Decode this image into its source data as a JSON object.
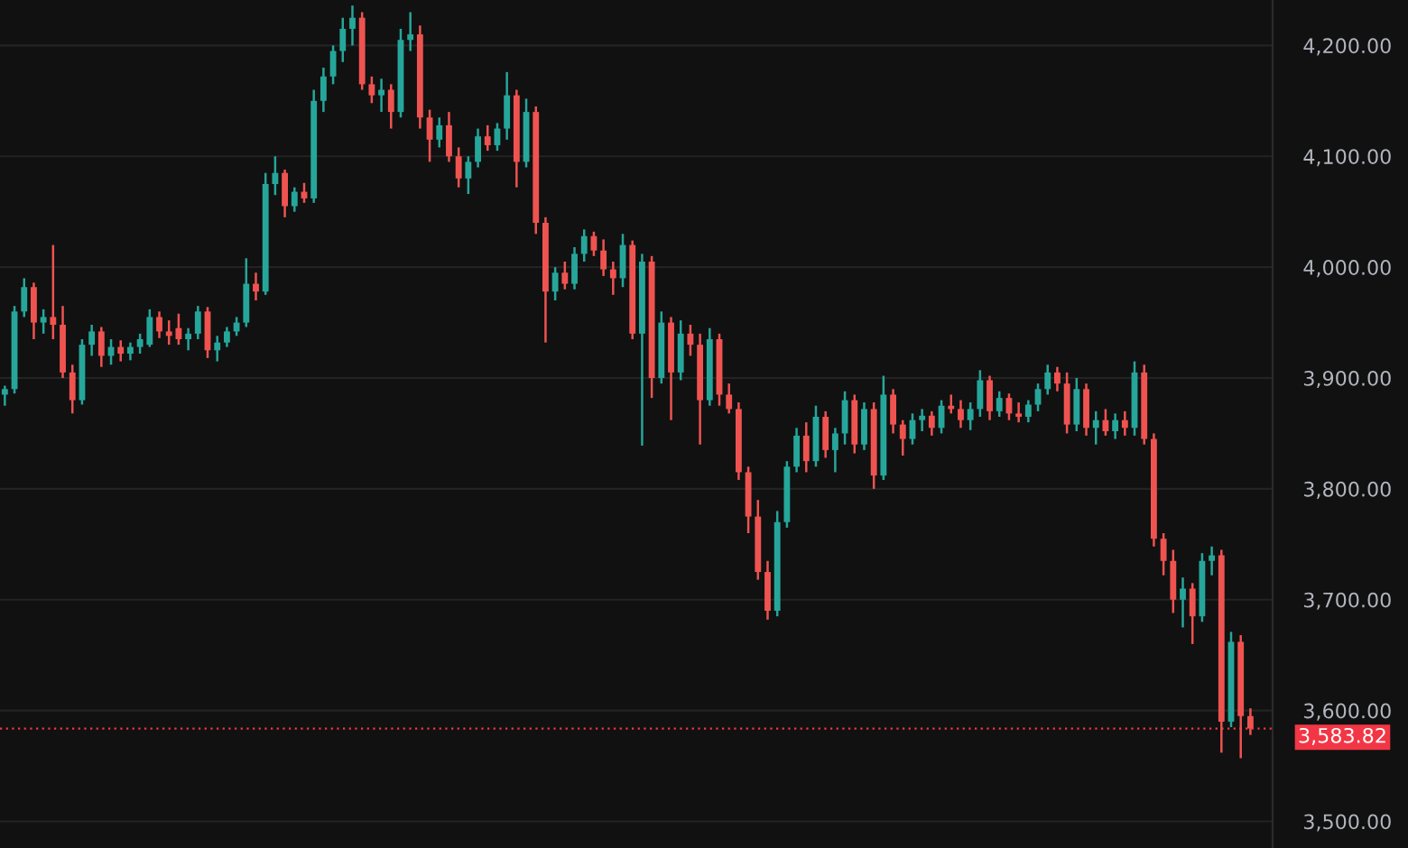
{
  "chart_data": {
    "type": "candlestick",
    "categories": [
      null,
      null,
      null,
      null,
      null,
      null,
      null,
      null,
      null,
      null,
      null,
      null,
      null,
      null,
      null,
      null,
      null,
      null,
      null,
      null,
      null,
      null,
      null,
      null,
      null,
      null,
      null,
      null,
      null,
      null,
      null,
      null,
      null,
      null,
      null,
      null,
      null,
      null,
      null,
      null,
      null,
      null,
      null,
      null,
      null,
      null,
      null,
      null,
      null,
      null,
      null,
      null,
      null,
      null,
      null,
      null,
      null,
      null,
      null,
      null,
      null,
      null,
      null,
      null,
      null,
      null,
      null,
      null,
      null,
      null,
      null,
      null,
      null,
      null,
      null,
      null,
      null,
      null,
      null,
      null,
      null,
      null,
      null,
      null,
      null,
      null,
      null,
      null,
      null,
      null,
      null,
      null,
      null,
      null,
      null,
      null,
      null,
      null,
      null,
      null,
      null,
      null,
      null,
      null,
      null,
      null,
      null,
      null,
      null,
      null,
      null,
      null,
      null,
      null,
      null,
      null,
      null,
      null,
      null,
      null,
      null,
      null,
      null,
      null,
      null,
      null,
      null,
      null,
      null,
      null
    ],
    "ohlc": [
      [
        3885,
        3893,
        3875,
        3890
      ],
      [
        3890,
        3965,
        3886,
        3960
      ],
      [
        3960,
        3990,
        3955,
        3982
      ],
      [
        3982,
        3986,
        3935,
        3950
      ],
      [
        3950,
        3962,
        3940,
        3955
      ],
      [
        3955,
        4020,
        3935,
        3948
      ],
      [
        3948,
        3965,
        3900,
        3905
      ],
      [
        3905,
        3912,
        3868,
        3880
      ],
      [
        3880,
        3935,
        3876,
        3930
      ],
      [
        3930,
        3948,
        3920,
        3942
      ],
      [
        3942,
        3946,
        3910,
        3920
      ],
      [
        3920,
        3935,
        3912,
        3928
      ],
      [
        3928,
        3934,
        3915,
        3922
      ],
      [
        3922,
        3932,
        3916,
        3928
      ],
      [
        3928,
        3940,
        3922,
        3935
      ],
      [
        3930,
        3962,
        3928,
        3955
      ],
      [
        3955,
        3960,
        3936,
        3942
      ],
      [
        3942,
        3952,
        3930,
        3938
      ],
      [
        3945,
        3958,
        3930,
        3935
      ],
      [
        3935,
        3945,
        3925,
        3940
      ],
      [
        3940,
        3965,
        3935,
        3960
      ],
      [
        3960,
        3964,
        3918,
        3925
      ],
      [
        3925,
        3938,
        3915,
        3932
      ],
      [
        3932,
        3946,
        3928,
        3942
      ],
      [
        3942,
        3955,
        3938,
        3950
      ],
      [
        3950,
        4008,
        3946,
        3985
      ],
      [
        3985,
        3995,
        3970,
        3978
      ],
      [
        3978,
        4085,
        3975,
        4075
      ],
      [
        4075,
        4100,
        4065,
        4085
      ],
      [
        4085,
        4088,
        4045,
        4055
      ],
      [
        4055,
        4072,
        4050,
        4068
      ],
      [
        4068,
        4076,
        4058,
        4062
      ],
      [
        4062,
        4160,
        4058,
        4150
      ],
      [
        4150,
        4180,
        4140,
        4172
      ],
      [
        4172,
        4200,
        4165,
        4195
      ],
      [
        4195,
        4225,
        4185,
        4215
      ],
      [
        4215,
        4236,
        4200,
        4225
      ],
      [
        4225,
        4230,
        4160,
        4165
      ],
      [
        4165,
        4172,
        4148,
        4155
      ],
      [
        4155,
        4170,
        4140,
        4160
      ],
      [
        4160,
        4165,
        4125,
        4140
      ],
      [
        4140,
        4215,
        4135,
        4205
      ],
      [
        4205,
        4230,
        4195,
        4210
      ],
      [
        4210,
        4218,
        4125,
        4135
      ],
      [
        4135,
        4142,
        4095,
        4115
      ],
      [
        4115,
        4135,
        4108,
        4128
      ],
      [
        4128,
        4140,
        4095,
        4100
      ],
      [
        4100,
        4108,
        4072,
        4080
      ],
      [
        4080,
        4100,
        4066,
        4095
      ],
      [
        4095,
        4125,
        4090,
        4118
      ],
      [
        4118,
        4128,
        4105,
        4110
      ],
      [
        4110,
        4130,
        4105,
        4125
      ],
      [
        4125,
        4176,
        4115,
        4155
      ],
      [
        4155,
        4160,
        4072,
        4095
      ],
      [
        4095,
        4152,
        4090,
        4140
      ],
      [
        4140,
        4145,
        4030,
        4040
      ],
      [
        4040,
        4045,
        3932,
        3978
      ],
      [
        3978,
        4000,
        3970,
        3995
      ],
      [
        3995,
        4005,
        3980,
        3985
      ],
      [
        3985,
        4018,
        3980,
        4012
      ],
      [
        4012,
        4034,
        4005,
        4028
      ],
      [
        4028,
        4032,
        4010,
        4015
      ],
      [
        4015,
        4025,
        3992,
        3998
      ],
      [
        3998,
        4005,
        3975,
        3990
      ],
      [
        3990,
        4030,
        3982,
        4020
      ],
      [
        4020,
        4024,
        3935,
        3940
      ],
      [
        3940,
        4012,
        3839,
        4005
      ],
      [
        4005,
        4010,
        3882,
        3900
      ],
      [
        3900,
        3960,
        3895,
        3950
      ],
      [
        3950,
        3955,
        3862,
        3905
      ],
      [
        3905,
        3952,
        3898,
        3940
      ],
      [
        3940,
        3948,
        3920,
        3930
      ],
      [
        3930,
        3940,
        3840,
        3880
      ],
      [
        3880,
        3945,
        3875,
        3935
      ],
      [
        3935,
        3940,
        3875,
        3885
      ],
      [
        3885,
        3895,
        3868,
        3872
      ],
      [
        3872,
        3878,
        3808,
        3815
      ],
      [
        3815,
        3820,
        3760,
        3775
      ],
      [
        3775,
        3790,
        3718,
        3725
      ],
      [
        3725,
        3735,
        3682,
        3690
      ],
      [
        3690,
        3780,
        3685,
        3770
      ],
      [
        3770,
        3825,
        3765,
        3820
      ],
      [
        3820,
        3855,
        3815,
        3848
      ],
      [
        3848,
        3860,
        3815,
        3825
      ],
      [
        3825,
        3875,
        3820,
        3865
      ],
      [
        3865,
        3870,
        3828,
        3835
      ],
      [
        3835,
        3855,
        3815,
        3850
      ],
      [
        3850,
        3888,
        3840,
        3880
      ],
      [
        3880,
        3885,
        3832,
        3840
      ],
      [
        3840,
        3878,
        3835,
        3872
      ],
      [
        3872,
        3878,
        3800,
        3812
      ],
      [
        3812,
        3902,
        3808,
        3885
      ],
      [
        3885,
        3890,
        3850,
        3858
      ],
      [
        3858,
        3862,
        3830,
        3845
      ],
      [
        3845,
        3868,
        3840,
        3862
      ],
      [
        3862,
        3872,
        3852,
        3866
      ],
      [
        3866,
        3870,
        3848,
        3855
      ],
      [
        3855,
        3880,
        3850,
        3875
      ],
      [
        3875,
        3885,
        3868,
        3872
      ],
      [
        3872,
        3880,
        3855,
        3862
      ],
      [
        3862,
        3878,
        3853,
        3872
      ],
      [
        3872,
        3907,
        3865,
        3898
      ],
      [
        3898,
        3902,
        3862,
        3870
      ],
      [
        3870,
        3888,
        3865,
        3882
      ],
      [
        3882,
        3886,
        3862,
        3868
      ],
      [
        3868,
        3878,
        3860,
        3865
      ],
      [
        3865,
        3880,
        3860,
        3876
      ],
      [
        3876,
        3895,
        3870,
        3890
      ],
      [
        3890,
        3912,
        3885,
        3905
      ],
      [
        3905,
        3910,
        3888,
        3895
      ],
      [
        3895,
        3905,
        3850,
        3858
      ],
      [
        3858,
        3900,
        3852,
        3890
      ],
      [
        3890,
        3895,
        3848,
        3855
      ],
      [
        3855,
        3870,
        3840,
        3862
      ],
      [
        3862,
        3872,
        3848,
        3852
      ],
      [
        3852,
        3868,
        3845,
        3862
      ],
      [
        3862,
        3870,
        3848,
        3855
      ],
      [
        3855,
        3915,
        3848,
        3905
      ],
      [
        3905,
        3912,
        3840,
        3845
      ],
      [
        3845,
        3850,
        3748,
        3755
      ],
      [
        3755,
        3760,
        3722,
        3735
      ],
      [
        3735,
        3745,
        3688,
        3700
      ],
      [
        3700,
        3720,
        3675,
        3710
      ],
      [
        3710,
        3715,
        3660,
        3685
      ],
      [
        3685,
        3742,
        3680,
        3735
      ],
      [
        3735,
        3748,
        3722,
        3740
      ],
      [
        3740,
        3745,
        3562,
        3590
      ],
      [
        3590,
        3671,
        3585,
        3662
      ],
      [
        3662,
        3668,
        3557,
        3595
      ],
      [
        3595,
        3602,
        3578,
        3583.82
      ]
    ],
    "colors": [
      "#26a69a",
      "#26a69a",
      "#26a69a",
      "#ef5350",
      "#26a69a",
      "#ef5350",
      "#ef5350",
      "#ef5350",
      "#26a69a",
      "#26a69a",
      "#ef5350",
      "#26a69a",
      "#ef5350",
      "#26a69a",
      "#26a69a",
      "#26a69a",
      "#ef5350",
      "#ef5350",
      "#ef5350",
      "#26a69a",
      "#26a69a",
      "#ef5350",
      "#26a69a",
      "#26a69a",
      "#26a69a",
      "#26a69a",
      "#ef5350",
      "#26a69a",
      "#26a69a",
      "#ef5350",
      "#26a69a",
      "#ef5350",
      "#26a69a",
      "#26a69a",
      "#26a69a",
      "#26a69a",
      "#26a69a",
      "#ef5350",
      "#ef5350",
      "#26a69a",
      "#ef5350",
      "#26a69a",
      "#26a69a",
      "#ef5350",
      "#ef5350",
      "#26a69a",
      "#ef5350",
      "#ef5350",
      "#26a69a",
      "#26a69a",
      "#ef5350",
      "#26a69a",
      "#26a69a",
      "#ef5350",
      "#26a69a",
      "#ef5350",
      "#ef5350",
      "#26a69a",
      "#ef5350",
      "#26a69a",
      "#26a69a",
      "#ef5350",
      "#ef5350",
      "#ef5350",
      "#26a69a",
      "#ef5350",
      "#26a69a",
      "#ef5350",
      "#26a69a",
      "#ef5350",
      "#26a69a",
      "#ef5350",
      "#ef5350",
      "#26a69a",
      "#ef5350",
      "#ef5350",
      "#ef5350",
      "#ef5350",
      "#ef5350",
      "#ef5350",
      "#26a69a",
      "#26a69a",
      "#26a69a",
      "#ef5350",
      "#26a69a",
      "#ef5350",
      "#26a69a",
      "#26a69a",
      "#ef5350",
      "#26a69a",
      "#ef5350",
      "#26a69a",
      "#ef5350",
      "#ef5350",
      "#26a69a",
      "#26a69a",
      "#ef5350",
      "#26a69a",
      "#ef5350",
      "#ef5350",
      "#26a69a",
      "#26a69a",
      "#ef5350",
      "#26a69a",
      "#ef5350",
      "#ef5350",
      "#26a69a",
      "#26a69a",
      "#26a69a",
      "#ef5350",
      "#ef5350",
      "#26a69a",
      "#ef5350",
      "#26a69a",
      "#ef5350",
      "#26a69a",
      "#ef5350",
      "#26a69a",
      "#ef5350",
      "#ef5350",
      "#ef5350",
      "#ef5350",
      "#26a69a",
      "#ef5350",
      "#26a69a",
      "#26a69a",
      "#ef5350",
      "#26a69a",
      "#ef5350",
      "#ef5350"
    ],
    "ylim": [
      3476,
      4241
    ],
    "yticks": [
      {
        "value": 3500,
        "label": "3,500.00"
      },
      {
        "value": 3600,
        "label": "3,600.00"
      },
      {
        "value": 3700,
        "label": "3,700.00"
      },
      {
        "value": 3800,
        "label": "3,800.00"
      },
      {
        "value": 3900,
        "label": "3,900.00"
      },
      {
        "value": 4000,
        "label": "4,000.00"
      },
      {
        "value": 4100,
        "label": "4,100.00"
      },
      {
        "value": 4200,
        "label": "4,200.00"
      }
    ],
    "grid": "y",
    "ref_lines": [
      {
        "axis": "y",
        "value": 3583.82,
        "label": "3,583.82",
        "color": "#f23645",
        "line_style": "dotted"
      }
    ]
  }
}
